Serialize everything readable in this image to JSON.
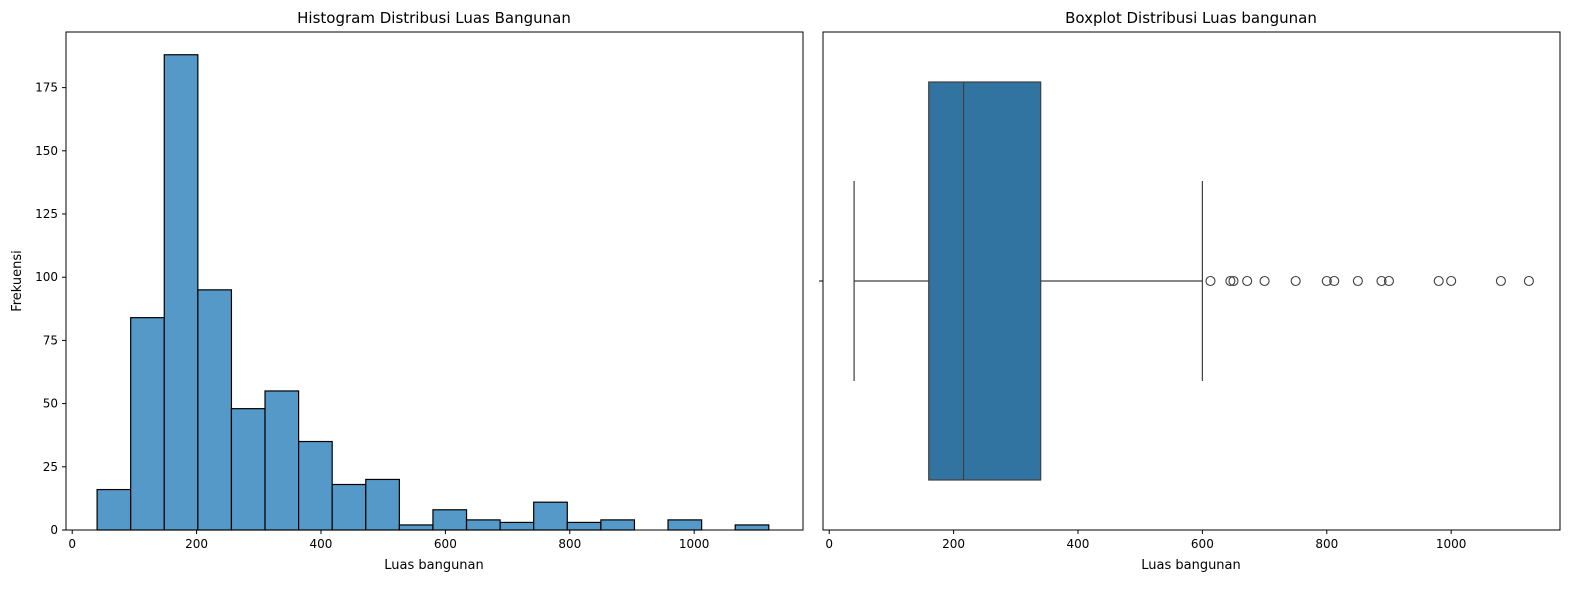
{
  "chart_data": [
    {
      "type": "bar",
      "title": "Histogram Distribusi Luas Bangunan",
      "xlabel": "Luas bangunan",
      "ylabel": "Frekuensi",
      "xlim": [
        -10,
        1175
      ],
      "ylim": [
        0,
        197
      ],
      "xticks": [
        0,
        200,
        400,
        600,
        800,
        1000
      ],
      "yticks": [
        0,
        25,
        50,
        75,
        100,
        125,
        150,
        175
      ],
      "bins": [
        {
          "x0": 40,
          "x1": 94,
          "count": 16
        },
        {
          "x0": 94,
          "x1": 148,
          "count": 84
        },
        {
          "x0": 148,
          "x1": 202,
          "count": 188
        },
        {
          "x0": 202,
          "x1": 256,
          "count": 95
        },
        {
          "x0": 256,
          "x1": 310,
          "count": 48
        },
        {
          "x0": 310,
          "x1": 364,
          "count": 55
        },
        {
          "x0": 364,
          "x1": 418,
          "count": 35
        },
        {
          "x0": 418,
          "x1": 472,
          "count": 18
        },
        {
          "x0": 472,
          "x1": 526,
          "count": 20
        },
        {
          "x0": 526,
          "x1": 580,
          "count": 2
        },
        {
          "x0": 580,
          "x1": 634,
          "count": 8
        },
        {
          "x0": 634,
          "x1": 688,
          "count": 4
        },
        {
          "x0": 688,
          "x1": 742,
          "count": 3
        },
        {
          "x0": 742,
          "x1": 796,
          "count": 11
        },
        {
          "x0": 796,
          "x1": 850,
          "count": 3
        },
        {
          "x0": 850,
          "x1": 904,
          "count": 4
        },
        {
          "x0": 904,
          "x1": 958,
          "count": 0
        },
        {
          "x0": 958,
          "x1": 1012,
          "count": 4
        },
        {
          "x0": 1012,
          "x1": 1066,
          "count": 0
        },
        {
          "x0": 1066,
          "x1": 1120,
          "count": 2
        }
      ],
      "color": "#5599c8",
      "edgecolor": "#000000",
      "grid": false
    },
    {
      "type": "boxplot",
      "title": "Boxplot Distribusi Luas bangunan",
      "xlabel": "Luas bangunan",
      "xlim": [
        -10,
        1175
      ],
      "xticks": [
        0,
        200,
        400,
        600,
        800,
        1000
      ],
      "whisker_low": 40,
      "q1": 160,
      "median": 216,
      "q3": 340,
      "whisker_high": 600,
      "outliers": [
        613,
        645,
        650,
        672,
        700,
        750,
        800,
        812,
        850,
        888,
        900,
        980,
        1000,
        1080,
        1125
      ],
      "color": "#3274a1",
      "grid": false
    }
  ]
}
